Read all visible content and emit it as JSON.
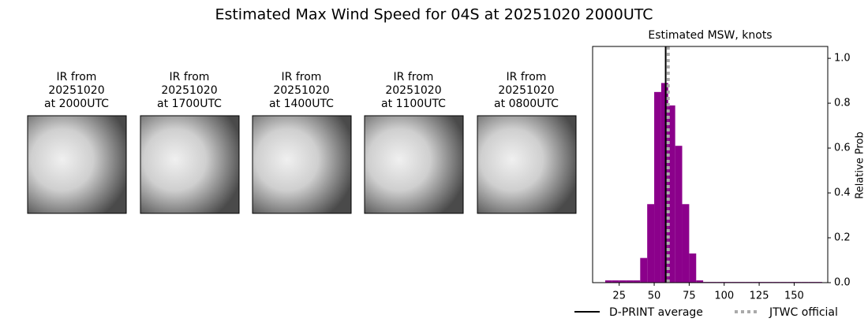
{
  "title": "Estimated Max Wind Speed for 04S at 20251020 2000UTC",
  "panels": [
    {
      "lines": [
        "IR from",
        "20251020",
        "at 2000UTC"
      ]
    },
    {
      "lines": [
        "IR from",
        "20251020",
        "at 1700UTC"
      ]
    },
    {
      "lines": [
        "IR from",
        "20251020",
        "at 1400UTC"
      ]
    },
    {
      "lines": [
        "IR from",
        "20251020",
        "at 1100UTC"
      ]
    },
    {
      "lines": [
        "IR from",
        "20251020",
        "at 0800UTC"
      ]
    }
  ],
  "chart_data": {
    "type": "histogram",
    "title": "Estimated MSW, knots",
    "y_label": "Relative Prob",
    "color": "#8b008b",
    "bins": [
      15,
      20,
      25,
      30,
      35,
      40,
      45,
      50,
      55,
      60,
      65,
      70,
      75,
      80,
      85,
      90,
      95,
      100,
      105,
      110,
      115,
      120,
      125,
      130,
      135,
      140,
      145,
      150,
      155,
      160,
      165,
      170
    ],
    "counts": [
      0.01,
      0.01,
      0.01,
      0.01,
      0.01,
      0.11,
      0.35,
      0.85,
      0.89,
      0.79,
      0.61,
      0.35,
      0.13,
      0.01,
      0.003,
      0.003,
      0.003,
      0.003,
      0.003,
      0.003,
      0.003,
      0.003,
      0.003,
      0.003,
      0.003,
      0.003,
      0.003,
      0.003,
      0.003,
      0.003,
      0.003
    ],
    "xlim": [
      6,
      174
    ],
    "xticks": [
      25,
      50,
      75,
      100,
      125,
      150
    ],
    "ylim": [
      0,
      1.053
    ],
    "yticks": [
      {
        "value": 0,
        "label": "0.0"
      },
      {
        "value": 0.2,
        "label": "0.2"
      },
      {
        "value": 0.4,
        "label": "0.4"
      },
      {
        "value": 0.6,
        "label": "0.6"
      },
      {
        "value": 0.8,
        "label": "0.8"
      },
      {
        "value": 1.0,
        "label": "1.0"
      }
    ],
    "lines": [
      {
        "name": "D-PRINT average",
        "value": 58.2,
        "color": "#000000",
        "dashed": false
      },
      {
        "name": "JTWC official",
        "value": 60,
        "color": "#aaaaaa",
        "dashed": true
      }
    ]
  }
}
